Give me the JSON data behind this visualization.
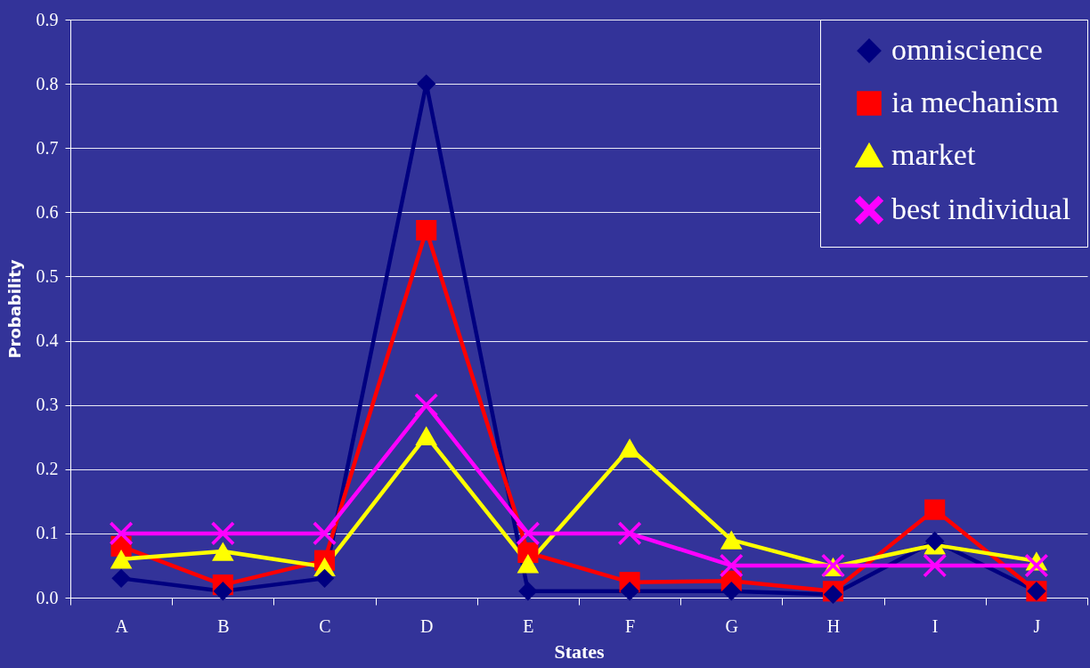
{
  "chart_data": {
    "type": "line",
    "xlabel": "States",
    "ylabel": "Probability",
    "categories": [
      "A",
      "B",
      "C",
      "D",
      "E",
      "F",
      "G",
      "H",
      "I",
      "J"
    ],
    "ylim": [
      0,
      0.9
    ],
    "yticks": [
      {
        "value": 0,
        "label": "0.0"
      },
      0.1,
      0.2,
      0.3,
      0.4,
      0.5,
      0.6,
      0.7,
      0.8,
      0.9
    ],
    "grid": "y",
    "legend": "top right",
    "series": [
      {
        "name": "omniscience",
        "color": "#000080",
        "marker": "diamond",
        "values": [
          0.03,
          0.01,
          0.03,
          0.8,
          0.01,
          0.01,
          0.01,
          0.005,
          0.088,
          0.01
        ]
      },
      {
        "name": "ia mechanism",
        "color": "#ff0000",
        "marker": "square",
        "values": [
          0.08,
          0.02,
          0.058,
          0.572,
          0.07,
          0.024,
          0.026,
          0.01,
          0.137,
          0.01
        ]
      },
      {
        "name": "market",
        "color": "#ffff00",
        "marker": "triangle",
        "values": [
          0.06,
          0.072,
          0.048,
          0.252,
          0.053,
          0.233,
          0.09,
          0.048,
          0.082,
          0.057
        ]
      },
      {
        "name": "best individual",
        "color": "#ff00ff",
        "marker": "cross",
        "values": [
          0.1,
          0.1,
          0.1,
          0.3,
          0.1,
          0.1,
          0.05,
          0.05,
          0.05,
          0.05
        ]
      }
    ]
  }
}
